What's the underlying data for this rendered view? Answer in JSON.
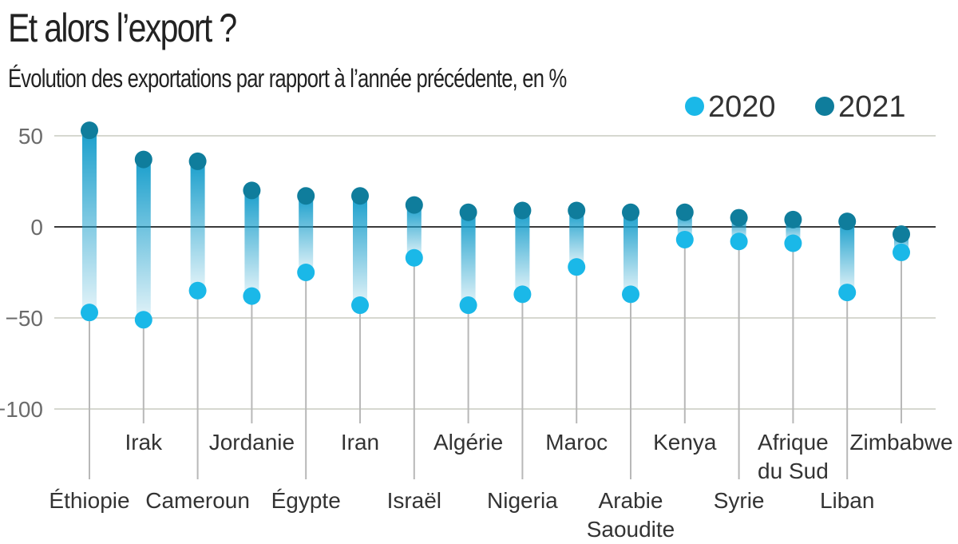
{
  "chart_data": {
    "type": "dumbbell",
    "title": "Et alors l’export ?",
    "subtitle": "Évolution des exportations par rapport à l’année précédente, en %",
    "ylim": [
      -100,
      50
    ],
    "yticks": [
      50,
      0,
      -50,
      -100
    ],
    "ytick_labels": [
      "50",
      "0",
      "−50",
      "−100"
    ],
    "grid": true,
    "legend_position": "top-right",
    "categories": [
      "Éthiopie",
      "Irak",
      "Cameroun",
      "Jordanie",
      "Égypte",
      "Iran",
      "Israël",
      "Algérie",
      "Nigeria",
      "Maroc",
      "Arabie Saoudite",
      "Kenya",
      "Syrie",
      "Afrique du Sud",
      "Liban",
      "Zimbabwe"
    ],
    "series": [
      {
        "name": "2020",
        "color": "#1ab8e8",
        "values": [
          -47,
          -51,
          -35,
          -38,
          -25,
          -43,
          -17,
          -43,
          -37,
          -22,
          -37,
          -7,
          -8,
          -9,
          -36,
          -14
        ]
      },
      {
        "name": "2021",
        "color": "#0f7d9c",
        "values": [
          53,
          37,
          36,
          20,
          17,
          17,
          12,
          8,
          9,
          9,
          8,
          8,
          5,
          4,
          3,
          -4
        ]
      }
    ]
  }
}
